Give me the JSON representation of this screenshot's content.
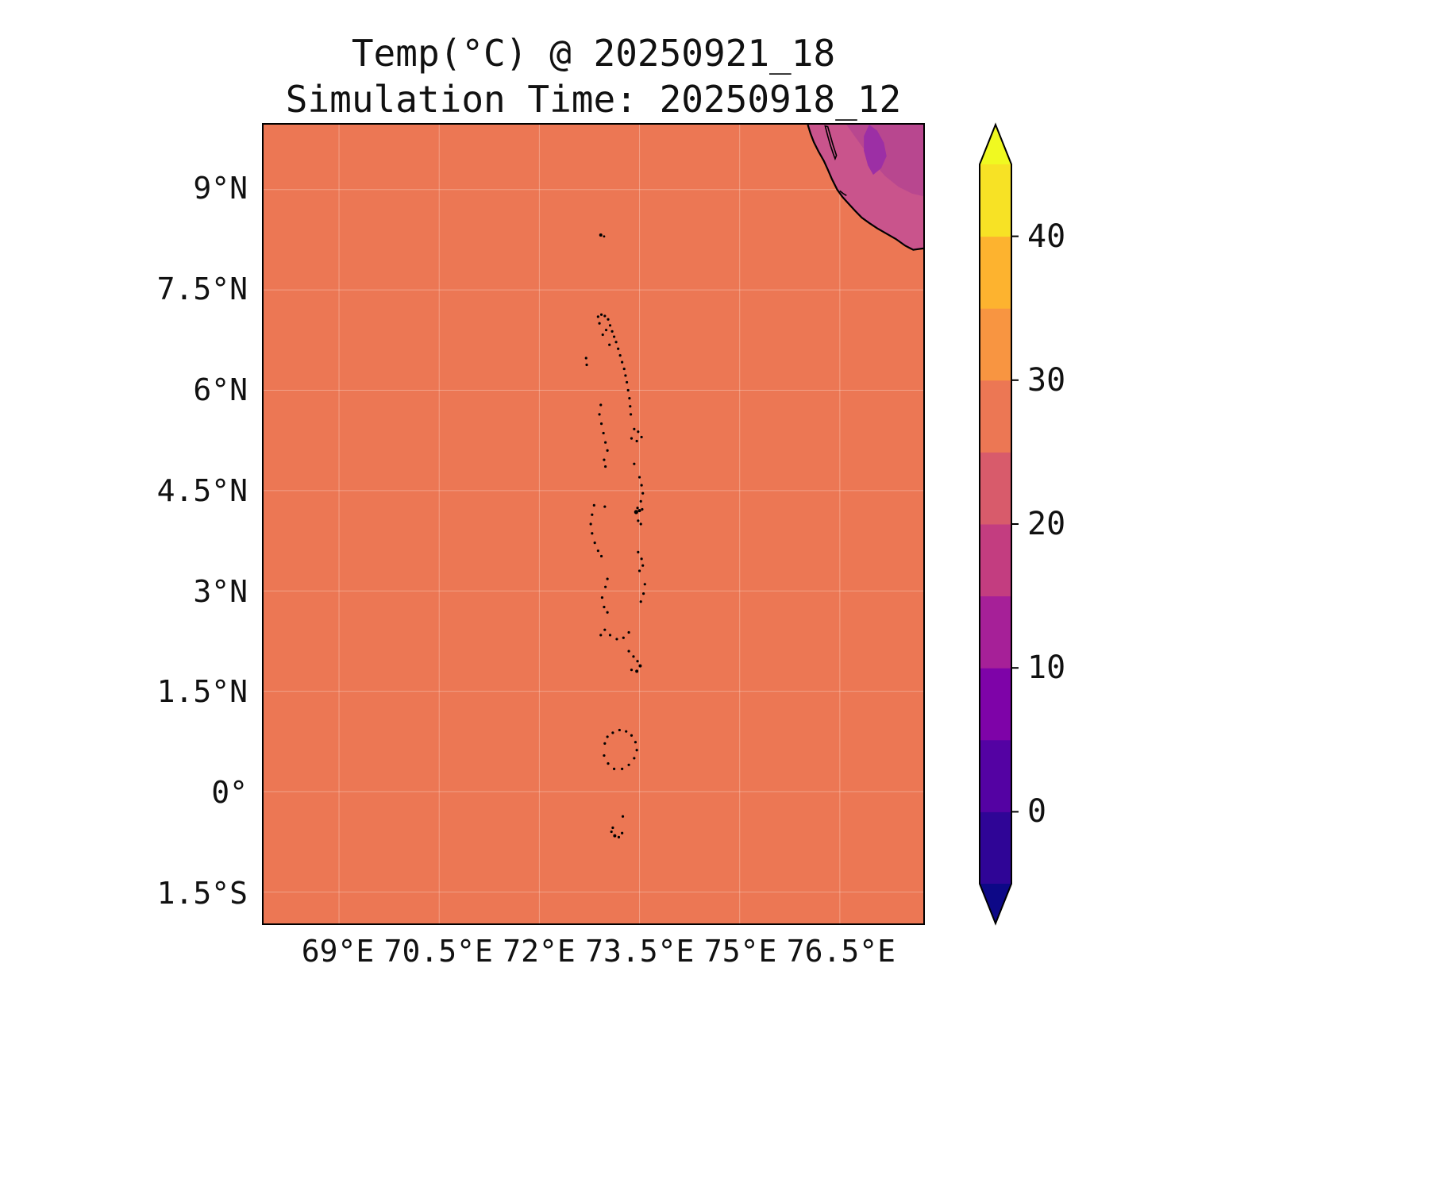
{
  "title": {
    "line1": "Temp(°C) @ 20250921_18",
    "line2": "Simulation Time: 20250918_12"
  },
  "colors": {
    "background": "#ffffff",
    "text": "#111111",
    "frame": "#000000",
    "ocean": "#ec7754",
    "land_main": "#c9548c",
    "land_cool": "#b8478f",
    "land_cold": "#9c2fa5",
    "coastline": "#000000",
    "island": "#000000",
    "gridline": "rgba(255,255,255,0.3)"
  },
  "chart_data": {
    "type": "heatmap",
    "title": "Temp(°C) @ 20250921_18",
    "subtitle": "Simulation Time: 20250918_12",
    "variable": "Temp",
    "units": "°C",
    "valid_time": "20250921_18",
    "simulation_time": "20250918_12",
    "grid": true,
    "extent": {
      "lon_min": 67.87,
      "lon_max": 77.75,
      "lat_min": -1.97,
      "lat_max": 9.97
    },
    "xticks": [
      {
        "label": "69°E",
        "lon": 69
      },
      {
        "label": "70.5°E",
        "lon": 70.5
      },
      {
        "label": "72°E",
        "lon": 72
      },
      {
        "label": "73.5°E",
        "lon": 73.5
      },
      {
        "label": "75°E",
        "lon": 75
      },
      {
        "label": "76.5°E",
        "lon": 76.5
      }
    ],
    "yticks": [
      {
        "label": "9°N",
        "lat": 9
      },
      {
        "label": "7.5°N",
        "lat": 7.5
      },
      {
        "label": "6°N",
        "lat": 6
      },
      {
        "label": "4.5°N",
        "lat": 4.5
      },
      {
        "label": "3°N",
        "lat": 3
      },
      {
        "label": "1.5°N",
        "lat": 1.5
      },
      {
        "label": "0°",
        "lat": 0
      },
      {
        "label": "1.5°S",
        "lat": -1.5
      }
    ],
    "field_summary": {
      "ocean_c": 28,
      "coastal_land_c": 22,
      "interior_land_c": 17,
      "ghats_patch_c": 12
    },
    "colorbar": {
      "orientation": "vertical",
      "extend": "both",
      "vmin": -5,
      "vmax": 45,
      "level_step": 5,
      "ticks": [
        {
          "label": "40",
          "value": 40
        },
        {
          "label": "30",
          "value": 30
        },
        {
          "label": "20",
          "value": 20
        },
        {
          "label": "10",
          "value": 10
        },
        {
          "label": "0",
          "value": 0
        }
      ],
      "band_colors": [
        "#2f0596",
        "#5402a3",
        "#7e03a8",
        "#a62098",
        "#c33d80",
        "#d85b6b",
        "#ec7754",
        "#f89541",
        "#fdb32f",
        "#f7e225"
      ],
      "under_color": "#0d0887",
      "over_color": "#f0f921"
    },
    "coastline": [
      [
        76.02,
        9.97
      ],
      [
        76.06,
        9.84
      ],
      [
        76.11,
        9.71
      ],
      [
        76.18,
        9.57
      ],
      [
        76.26,
        9.43
      ],
      [
        76.32,
        9.3
      ],
      [
        76.38,
        9.16
      ],
      [
        76.46,
        9.0
      ],
      [
        76.54,
        8.89
      ],
      [
        76.63,
        8.79
      ],
      [
        76.73,
        8.68
      ],
      [
        76.83,
        8.58
      ],
      [
        76.94,
        8.5
      ],
      [
        77.06,
        8.42
      ],
      [
        77.2,
        8.34
      ],
      [
        77.34,
        8.26
      ],
      [
        77.48,
        8.16
      ],
      [
        77.6,
        8.1
      ],
      [
        77.75,
        8.12
      ]
    ],
    "lake": [
      [
        76.28,
        9.95
      ],
      [
        76.32,
        9.8
      ],
      [
        76.36,
        9.66
      ],
      [
        76.4,
        9.54
      ],
      [
        76.43,
        9.46
      ],
      [
        76.45,
        9.51
      ],
      [
        76.4,
        9.66
      ],
      [
        76.36,
        9.8
      ],
      [
        76.32,
        9.94
      ]
    ],
    "inlet": [
      [
        76.5,
        8.98
      ],
      [
        76.55,
        8.94
      ],
      [
        76.6,
        8.91
      ]
    ],
    "land_cool_patch": [
      [
        76.6,
        9.97
      ],
      [
        76.72,
        9.8
      ],
      [
        76.88,
        9.58
      ],
      [
        77.02,
        9.38
      ],
      [
        77.18,
        9.2
      ],
      [
        77.38,
        9.04
      ],
      [
        77.58,
        8.94
      ],
      [
        77.75,
        8.9
      ],
      [
        77.75,
        9.97
      ]
    ],
    "land_cold_patch": [
      [
        76.94,
        9.97
      ],
      [
        77.06,
        9.88
      ],
      [
        77.16,
        9.7
      ],
      [
        77.2,
        9.5
      ],
      [
        77.12,
        9.32
      ],
      [
        77.0,
        9.22
      ],
      [
        76.92,
        9.36
      ],
      [
        76.86,
        9.58
      ],
      [
        76.86,
        9.8
      ]
    ],
    "islands": [
      [
        72.92,
        8.32,
        2
      ],
      [
        72.97,
        8.3,
        1.4
      ],
      [
        72.88,
        7.1
      ],
      [
        72.93,
        7.13
      ],
      [
        72.98,
        7.11
      ],
      [
        73.03,
        7.06
      ],
      [
        72.9,
        7.0
      ],
      [
        73.06,
        6.97
      ],
      [
        73.0,
        6.9
      ],
      [
        73.09,
        6.88
      ],
      [
        72.95,
        6.83
      ],
      [
        73.12,
        6.8
      ],
      [
        73.15,
        6.72
      ],
      [
        73.05,
        6.68
      ],
      [
        72.7,
        6.48
      ],
      [
        72.71,
        6.38
      ],
      [
        73.18,
        6.62
      ],
      [
        73.21,
        6.52
      ],
      [
        73.24,
        6.42
      ],
      [
        73.27,
        6.32
      ],
      [
        73.29,
        6.22
      ],
      [
        73.31,
        6.12
      ],
      [
        73.33,
        6.0
      ],
      [
        73.35,
        5.88
      ],
      [
        73.36,
        5.76
      ],
      [
        73.37,
        5.64
      ],
      [
        72.92,
        5.78
      ],
      [
        72.9,
        5.64
      ],
      [
        72.93,
        5.5
      ],
      [
        72.96,
        5.36
      ],
      [
        72.99,
        5.22
      ],
      [
        73.02,
        5.1
      ],
      [
        72.97,
        4.96
      ],
      [
        72.99,
        4.86
      ],
      [
        73.42,
        5.42
      ],
      [
        73.48,
        5.38
      ],
      [
        73.53,
        5.3
      ],
      [
        73.46,
        5.24
      ],
      [
        73.38,
        5.28
      ],
      [
        73.42,
        4.9
      ],
      [
        73.5,
        4.7
      ],
      [
        73.53,
        4.58
      ],
      [
        73.55,
        4.46
      ],
      [
        73.52,
        4.34
      ],
      [
        73.47,
        4.24
      ],
      [
        73.45,
        4.18,
        2.6
      ],
      [
        73.5,
        4.2,
        2
      ],
      [
        73.54,
        4.22
      ],
      [
        73.48,
        4.05
      ],
      [
        73.52,
        4.0
      ],
      [
        72.98,
        4.26
      ],
      [
        72.82,
        4.28
      ],
      [
        72.79,
        4.14
      ],
      [
        72.77,
        4.0
      ],
      [
        72.79,
        3.86
      ],
      [
        72.83,
        3.72
      ],
      [
        72.88,
        3.6
      ],
      [
        72.93,
        3.52
      ],
      [
        73.48,
        3.58
      ],
      [
        73.53,
        3.48
      ],
      [
        73.55,
        3.38
      ],
      [
        73.5,
        3.3
      ],
      [
        73.58,
        3.1
      ],
      [
        73.56,
        2.96
      ],
      [
        73.52,
        2.84
      ],
      [
        73.02,
        3.18
      ],
      [
        72.99,
        3.06
      ],
      [
        72.94,
        2.9
      ],
      [
        72.97,
        2.76
      ],
      [
        73.02,
        2.68
      ],
      [
        72.98,
        2.42
      ],
      [
        73.06,
        2.34
      ],
      [
        73.16,
        2.28
      ],
      [
        73.26,
        2.3
      ],
      [
        73.34,
        2.38
      ],
      [
        72.92,
        2.34
      ],
      [
        73.34,
        2.1
      ],
      [
        73.41,
        2.02
      ],
      [
        73.47,
        1.95
      ],
      [
        73.51,
        1.88,
        2
      ],
      [
        73.46,
        1.8,
        2
      ],
      [
        73.38,
        1.82
      ],
      [
        72.98,
        0.72
      ],
      [
        73.02,
        0.82
      ],
      [
        73.1,
        0.88
      ],
      [
        73.2,
        0.92
      ],
      [
        73.3,
        0.9
      ],
      [
        73.38,
        0.84
      ],
      [
        73.44,
        0.74
      ],
      [
        73.46,
        0.62
      ],
      [
        73.42,
        0.5
      ],
      [
        73.34,
        0.4
      ],
      [
        73.24,
        0.34
      ],
      [
        73.12,
        0.34
      ],
      [
        73.03,
        0.42
      ],
      [
        72.97,
        0.54
      ],
      [
        73.25,
        -0.37
      ],
      [
        73.08,
        -0.6
      ],
      [
        73.13,
        -0.66,
        2
      ],
      [
        73.19,
        -0.68
      ],
      [
        73.24,
        -0.62
      ],
      [
        73.1,
        -0.54
      ]
    ]
  }
}
